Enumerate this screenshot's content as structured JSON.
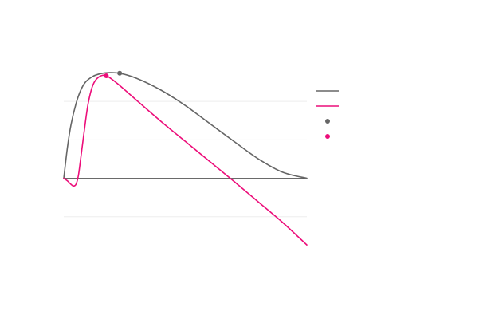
{
  "chart_data": {
    "type": "line",
    "title": "",
    "xlabel": "",
    "ylabel": "",
    "xlim": [
      0,
      10
    ],
    "ylim": [
      -1.5,
      2
    ],
    "grid": true,
    "legend_position": "right",
    "series": [
      {
        "color": "#666666",
        "style": "line",
        "points": [
          [
            0,
            0
          ],
          [
            0.15,
            0.6
          ],
          [
            0.3,
            1.05
          ],
          [
            0.5,
            1.45
          ],
          [
            0.7,
            1.72
          ],
          [
            0.9,
            1.88
          ],
          [
            1.2,
            1.99
          ],
          [
            1.5,
            2.04
          ],
          [
            1.8,
            2.06
          ],
          [
            2.3,
            2.05
          ],
          [
            3,
            1.95
          ],
          [
            4,
            1.72
          ],
          [
            5,
            1.42
          ],
          [
            6,
            1.07
          ],
          [
            7,
            0.72
          ],
          [
            8,
            0.38
          ],
          [
            9,
            0.12
          ],
          [
            10,
            0
          ]
        ]
      },
      {
        "color": "#ec0e7a",
        "style": "line",
        "points": [
          [
            0,
            0
          ],
          [
            0.15,
            -0.05
          ],
          [
            0.3,
            -0.12
          ],
          [
            0.4,
            -0.15
          ],
          [
            0.5,
            -0.12
          ],
          [
            0.6,
            0.05
          ],
          [
            0.7,
            0.4
          ],
          [
            0.85,
            0.95
          ],
          [
            1,
            1.45
          ],
          [
            1.2,
            1.82
          ],
          [
            1.45,
            1.98
          ],
          [
            1.75,
            2.0
          ],
          [
            2.2,
            1.85
          ],
          [
            3,
            1.52
          ],
          [
            4,
            1.11
          ],
          [
            5,
            0.72
          ],
          [
            6,
            0.33
          ],
          [
            7,
            -0.06
          ],
          [
            8,
            -0.46
          ],
          [
            9,
            -0.86
          ],
          [
            10,
            -1.3
          ]
        ]
      }
    ],
    "markers": [
      {
        "color": "#666666",
        "x": 2.3,
        "y": 2.05
      },
      {
        "color": "#ec0e7a",
        "x": 1.75,
        "y": 2.0
      }
    ],
    "legend": [
      {
        "type": "line",
        "color": "#666666"
      },
      {
        "type": "line",
        "color": "#ec0e7a"
      },
      {
        "type": "dot",
        "color": "#666666"
      },
      {
        "type": "dot",
        "color": "#ec0e7a"
      }
    ]
  }
}
